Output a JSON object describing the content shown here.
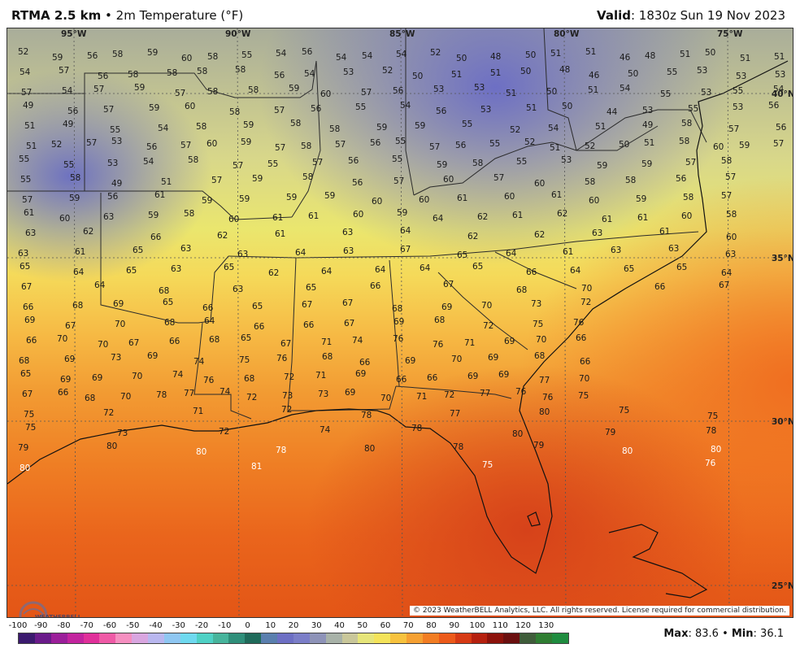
{
  "header": {
    "product": "RTMA 2.5 km",
    "separator": " • ",
    "field": "2m Temperature (°F)",
    "valid_label": "Valid",
    "valid_time": ": 1830z Sun 19 Nov 2023"
  },
  "map": {
    "lon_labels": [
      "95°W",
      "90°W",
      "85°W",
      "80°W",
      "75°W"
    ],
    "lat_labels": [
      "40°N",
      "35°N",
      "30°N",
      "25°N"
    ],
    "copyright": "© 2023 WeatherBELL Analytics, LLC. All rights reserved. License required for commercial distribution.",
    "logo_text": "WEATHERBELL"
  },
  "stations": [
    {
      "v": "52"
    },
    {
      "v": "59"
    },
    {
      "v": "56"
    },
    {
      "v": "58"
    },
    {
      "v": "59"
    },
    {
      "v": "60"
    },
    {
      "v": "58"
    },
    {
      "v": "55"
    },
    {
      "v": "54"
    },
    {
      "v": "56"
    },
    {
      "v": "54"
    },
    {
      "v": "54"
    },
    {
      "v": "54"
    },
    {
      "v": "52"
    },
    {
      "v": "50"
    },
    {
      "v": "48"
    },
    {
      "v": "50"
    },
    {
      "v": "51"
    },
    {
      "v": "51"
    },
    {
      "v": "46"
    },
    {
      "v": "48"
    },
    {
      "v": "51"
    },
    {
      "v": "50"
    },
    {
      "v": "51"
    },
    {
      "v": "51"
    },
    {
      "v": "54"
    },
    {
      "v": "57"
    },
    {
      "v": "56"
    },
    {
      "v": "58"
    },
    {
      "v": "58"
    },
    {
      "v": "58"
    },
    {
      "v": "58"
    },
    {
      "v": "56"
    },
    {
      "v": "54"
    },
    {
      "v": "53"
    },
    {
      "v": "52"
    },
    {
      "v": "50"
    },
    {
      "v": "51"
    },
    {
      "v": "51"
    },
    {
      "v": "50"
    },
    {
      "v": "48"
    },
    {
      "v": "46"
    },
    {
      "v": "50"
    },
    {
      "v": "55"
    },
    {
      "v": "53"
    },
    {
      "v": "53"
    },
    {
      "v": "53"
    },
    {
      "v": "57"
    },
    {
      "v": "54"
    },
    {
      "v": "57"
    },
    {
      "v": "59"
    },
    {
      "v": "57"
    },
    {
      "v": "58"
    },
    {
      "v": "58"
    },
    {
      "v": "59"
    },
    {
      "v": "60"
    },
    {
      "v": "57"
    },
    {
      "v": "56"
    },
    {
      "v": "53"
    },
    {
      "v": "53"
    },
    {
      "v": "51"
    },
    {
      "v": "50"
    },
    {
      "v": "51"
    },
    {
      "v": "54"
    },
    {
      "v": "55"
    },
    {
      "v": "53"
    },
    {
      "v": "55"
    },
    {
      "v": "54"
    },
    {
      "v": "49"
    },
    {
      "v": "56"
    },
    {
      "v": "57"
    },
    {
      "v": "59"
    },
    {
      "v": "60"
    },
    {
      "v": "58"
    },
    {
      "v": "57"
    },
    {
      "v": "56"
    },
    {
      "v": "55"
    },
    {
      "v": "54"
    },
    {
      "v": "56"
    },
    {
      "v": "53"
    },
    {
      "v": "51"
    },
    {
      "v": "50"
    },
    {
      "v": "44"
    },
    {
      "v": "53"
    },
    {
      "v": "55"
    },
    {
      "v": "53"
    },
    {
      "v": "56"
    },
    {
      "v": "51"
    },
    {
      "v": "49"
    },
    {
      "v": "55"
    },
    {
      "v": "54"
    },
    {
      "v": "58"
    },
    {
      "v": "59"
    },
    {
      "v": "58"
    },
    {
      "v": "58"
    },
    {
      "v": "59"
    },
    {
      "v": "59"
    },
    {
      "v": "55"
    },
    {
      "v": "52"
    },
    {
      "v": "54"
    },
    {
      "v": "51"
    },
    {
      "v": "49"
    },
    {
      "v": "58"
    },
    {
      "v": "57"
    },
    {
      "v": "56"
    },
    {
      "v": "51"
    },
    {
      "v": "52"
    },
    {
      "v": "57"
    },
    {
      "v": "53"
    },
    {
      "v": "56"
    },
    {
      "v": "57"
    },
    {
      "v": "60"
    },
    {
      "v": "59"
    },
    {
      "v": "57"
    },
    {
      "v": "58"
    },
    {
      "v": "57"
    },
    {
      "v": "56"
    },
    {
      "v": "55"
    },
    {
      "v": "57"
    },
    {
      "v": "56"
    },
    {
      "v": "55"
    },
    {
      "v": "52"
    },
    {
      "v": "51"
    },
    {
      "v": "52"
    },
    {
      "v": "50"
    },
    {
      "v": "51"
    },
    {
      "v": "58"
    },
    {
      "v": "60"
    },
    {
      "v": "59"
    },
    {
      "v": "57"
    },
    {
      "v": "55"
    },
    {
      "v": "55"
    },
    {
      "v": "53"
    },
    {
      "v": "54"
    },
    {
      "v": "58"
    },
    {
      "v": "57"
    },
    {
      "v": "55"
    },
    {
      "v": "57"
    },
    {
      "v": "56"
    },
    {
      "v": "55"
    },
    {
      "v": "59"
    },
    {
      "v": "58"
    },
    {
      "v": "55"
    },
    {
      "v": "53"
    },
    {
      "v": "59"
    },
    {
      "v": "59"
    },
    {
      "v": "57"
    },
    {
      "v": "58"
    },
    {
      "v": "55"
    },
    {
      "v": "58"
    },
    {
      "v": "49"
    },
    {
      "v": "51"
    },
    {
      "v": "57"
    },
    {
      "v": "59"
    },
    {
      "v": "58"
    },
    {
      "v": "56"
    },
    {
      "v": "57"
    },
    {
      "v": "60"
    },
    {
      "v": "57"
    },
    {
      "v": "60"
    },
    {
      "v": "58"
    },
    {
      "v": "58"
    },
    {
      "v": "56"
    },
    {
      "v": "57"
    },
    {
      "v": "57"
    },
    {
      "v": "59"
    },
    {
      "v": "56"
    },
    {
      "v": "61"
    },
    {
      "v": "59"
    },
    {
      "v": "59"
    },
    {
      "v": "59"
    },
    {
      "v": "59"
    },
    {
      "v": "60"
    },
    {
      "v": "60"
    },
    {
      "v": "61"
    },
    {
      "v": "60"
    },
    {
      "v": "61"
    },
    {
      "v": "60"
    },
    {
      "v": "59"
    },
    {
      "v": "58"
    },
    {
      "v": "57"
    },
    {
      "v": "61"
    },
    {
      "v": "60"
    },
    {
      "v": "63"
    },
    {
      "v": "59"
    },
    {
      "v": "58"
    },
    {
      "v": "60"
    },
    {
      "v": "61"
    },
    {
      "v": "61"
    },
    {
      "v": "60"
    },
    {
      "v": "59"
    },
    {
      "v": "64"
    },
    {
      "v": "62"
    },
    {
      "v": "61"
    },
    {
      "v": "62"
    },
    {
      "v": "61"
    },
    {
      "v": "61"
    },
    {
      "v": "60"
    },
    {
      "v": "58"
    },
    {
      "v": "63"
    },
    {
      "v": "62"
    },
    {
      "v": "66"
    },
    {
      "v": "62"
    },
    {
      "v": "61"
    },
    {
      "v": "63"
    },
    {
      "v": "64"
    },
    {
      "v": "62"
    },
    {
      "v": "62"
    },
    {
      "v": "63"
    },
    {
      "v": "61"
    },
    {
      "v": "60"
    },
    {
      "v": "63"
    },
    {
      "v": "61"
    },
    {
      "v": "65"
    },
    {
      "v": "63"
    },
    {
      "v": "63"
    },
    {
      "v": "64"
    },
    {
      "v": "63"
    },
    {
      "v": "67"
    },
    {
      "v": "65"
    },
    {
      "v": "64"
    },
    {
      "v": "61"
    },
    {
      "v": "63"
    },
    {
      "v": "63"
    },
    {
      "v": "63"
    },
    {
      "v": "65"
    },
    {
      "v": "64"
    },
    {
      "v": "65"
    },
    {
      "v": "63"
    },
    {
      "v": "65"
    },
    {
      "v": "62"
    },
    {
      "v": "64"
    },
    {
      "v": "64"
    },
    {
      "v": "64"
    },
    {
      "v": "65"
    },
    {
      "v": "66"
    },
    {
      "v": "64"
    },
    {
      "v": "65"
    },
    {
      "v": "65"
    },
    {
      "v": "64"
    },
    {
      "v": "67"
    },
    {
      "v": "64"
    },
    {
      "v": "68"
    },
    {
      "v": "63"
    },
    {
      "v": "65"
    },
    {
      "v": "66"
    },
    {
      "v": "67"
    },
    {
      "v": "68"
    },
    {
      "v": "70"
    },
    {
      "v": "66"
    },
    {
      "v": "67"
    },
    {
      "v": "66"
    },
    {
      "v": "68"
    },
    {
      "v": "69"
    },
    {
      "v": "65"
    },
    {
      "v": "66"
    },
    {
      "v": "65"
    },
    {
      "v": "67"
    },
    {
      "v": "67"
    },
    {
      "v": "68"
    },
    {
      "v": "69"
    },
    {
      "v": "70"
    },
    {
      "v": "73"
    },
    {
      "v": "72"
    },
    {
      "v": "69"
    },
    {
      "v": "67"
    },
    {
      "v": "70"
    },
    {
      "v": "68"
    },
    {
      "v": "64"
    },
    {
      "v": "66"
    },
    {
      "v": "66"
    },
    {
      "v": "67"
    },
    {
      "v": "69"
    },
    {
      "v": "68"
    },
    {
      "v": "72"
    },
    {
      "v": "75"
    },
    {
      "v": "76"
    },
    {
      "v": "66"
    },
    {
      "v": "70"
    },
    {
      "v": "70"
    },
    {
      "v": "67"
    },
    {
      "v": "66"
    },
    {
      "v": "68"
    },
    {
      "v": "65"
    },
    {
      "v": "67"
    },
    {
      "v": "71"
    },
    {
      "v": "74"
    },
    {
      "v": "76"
    },
    {
      "v": "76"
    },
    {
      "v": "71"
    },
    {
      "v": "69"
    },
    {
      "v": "70"
    },
    {
      "v": "66"
    },
    {
      "v": "68"
    },
    {
      "v": "69"
    },
    {
      "v": "73"
    },
    {
      "v": "69"
    },
    {
      "v": "74"
    },
    {
      "v": "75"
    },
    {
      "v": "76"
    },
    {
      "v": "68"
    },
    {
      "v": "66"
    },
    {
      "v": "69"
    },
    {
      "v": "70"
    },
    {
      "v": "69"
    },
    {
      "v": "68"
    },
    {
      "v": "66"
    },
    {
      "v": "65"
    },
    {
      "v": "69"
    },
    {
      "v": "69"
    },
    {
      "v": "70"
    },
    {
      "v": "74"
    },
    {
      "v": "76"
    },
    {
      "v": "68"
    },
    {
      "v": "72"
    },
    {
      "v": "71"
    },
    {
      "v": "69"
    },
    {
      "v": "66"
    },
    {
      "v": "66"
    },
    {
      "v": "69"
    },
    {
      "v": "69"
    },
    {
      "v": "77"
    },
    {
      "v": "70"
    },
    {
      "v": "67"
    },
    {
      "v": "66"
    },
    {
      "v": "68"
    },
    {
      "v": "70"
    },
    {
      "v": "78"
    },
    {
      "v": "77"
    },
    {
      "v": "74"
    },
    {
      "v": "72"
    },
    {
      "v": "73"
    },
    {
      "v": "73"
    },
    {
      "v": "69"
    },
    {
      "v": "70"
    },
    {
      "v": "71"
    },
    {
      "v": "72"
    },
    {
      "v": "77"
    },
    {
      "v": "76"
    },
    {
      "v": "76"
    },
    {
      "v": "75"
    },
    {
      "v": "75"
    },
    {
      "v": "72"
    },
    {
      "v": "71"
    },
    {
      "v": "72"
    },
    {
      "v": "78"
    },
    {
      "v": "77"
    },
    {
      "v": "80"
    },
    {
      "v": "75"
    },
    {
      "v": "75"
    },
    {
      "v": "75"
    },
    {
      "v": "73"
    },
    {
      "v": "72"
    },
    {
      "v": "74"
    },
    {
      "v": "78"
    },
    {
      "v": "80"
    },
    {
      "v": "79"
    },
    {
      "v": "78"
    },
    {
      "v": "79"
    },
    {
      "v": "80"
    },
    {
      "v": "80"
    },
    {
      "v": "78"
    },
    {
      "v": "80"
    },
    {
      "v": "78"
    },
    {
      "v": "79"
    },
    {
      "v": "80"
    },
    {
      "v": "80"
    },
    {
      "v": "80"
    },
    {
      "v": "81"
    },
    {
      "v": "75"
    },
    {
      "v": "76"
    }
  ],
  "colorbar": {
    "tick_labels": [
      "-100",
      "-90",
      "-80",
      "-70",
      "-60",
      "-50",
      "-40",
      "-30",
      "-20",
      "-10",
      "0",
      "10",
      "20",
      "30",
      "40",
      "50",
      "60",
      "70",
      "80",
      "90",
      "100",
      "110",
      "120",
      "130"
    ],
    "colors": [
      "#3b1a6e",
      "#6a1b8a",
      "#9b1f9a",
      "#c2249e",
      "#e0309a",
      "#ef5aa6",
      "#f58fc0",
      "#d9a6e0",
      "#b9b7ef",
      "#8fc7f2",
      "#6fd9ef",
      "#4fd1c5",
      "#47b49c",
      "#2f8f7a",
      "#1f6a5a",
      "#5a7fae",
      "#6d6fc4",
      "#7b7ec8",
      "#8e93b8",
      "#a8b2a8",
      "#c9c79a",
      "#e6e57a",
      "#f4e35a",
      "#f7c23e",
      "#f5a032",
      "#f27d23",
      "#ec5a1a",
      "#d63a14",
      "#b5200f",
      "#8c120b",
      "#6a0f0f",
      "#3f5c3a",
      "#2f7d32",
      "#1f8c3f"
    ]
  },
  "stats": {
    "max_label": "Max",
    "max_value": ": 83.6",
    "sep": " • ",
    "min_label": "Min",
    "min_value": ": 36.1"
  }
}
